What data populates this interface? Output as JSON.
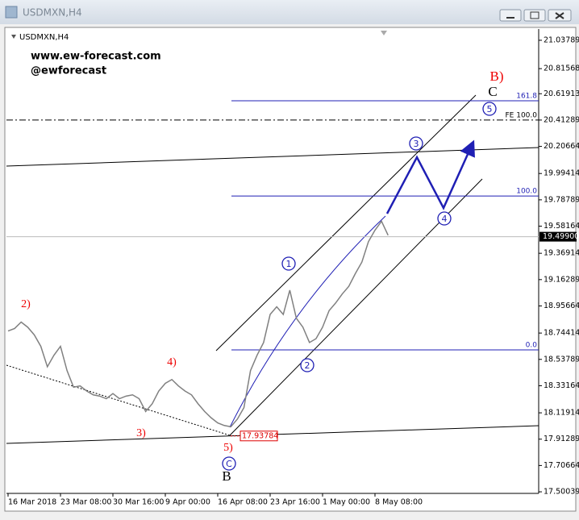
{
  "window": {
    "title": "USDMXN,H4"
  },
  "chart_data": {
    "type": "line",
    "title": "USDMXN,H4",
    "watermark": [
      "www.ew-forecast.com",
      "@ewforecast"
    ],
    "categories": [
      "16 Mar 2018",
      null,
      null,
      null,
      null,
      null,
      null,
      null,
      "23 Mar 08:00",
      null,
      null,
      null,
      null,
      null,
      null,
      null,
      "30 Mar 16:00",
      null,
      null,
      null,
      null,
      null,
      null,
      null,
      "9 Apr 00:00",
      null,
      null,
      null,
      null,
      null,
      null,
      null,
      "16 Apr 08:00",
      null,
      null,
      null,
      null,
      null,
      null,
      null,
      "23 Apr 16:00",
      null,
      null,
      null,
      null,
      null,
      null,
      null,
      "1 May 00:00",
      null,
      null,
      null,
      null,
      null,
      null,
      null,
      "8 May 08:00",
      null,
      null
    ],
    "values": [
      18.76,
      18.78,
      18.83,
      18.79,
      18.73,
      18.64,
      18.48,
      18.57,
      18.64,
      18.45,
      18.32,
      18.33,
      18.29,
      18.26,
      18.25,
      18.23,
      18.27,
      18.23,
      18.25,
      18.26,
      18.23,
      18.13,
      18.19,
      18.29,
      18.35,
      18.38,
      18.33,
      18.29,
      18.26,
      18.19,
      18.13,
      18.08,
      18.04,
      18.02,
      18.01,
      18.07,
      18.16,
      18.45,
      18.57,
      18.67,
      18.89,
      18.95,
      18.89,
      19.08,
      18.86,
      18.79,
      18.67,
      18.7,
      18.79,
      18.92,
      18.98,
      19.05,
      19.11,
      19.21,
      19.3,
      19.46,
      19.55,
      19.62,
      19.51
    ],
    "color": "#808080",
    "ylim": [
      17.488,
      21.126
    ],
    "yticks": [
      21.03789,
      20.81568,
      20.61913,
      20.41289,
      20.20664,
      19.99414,
      19.78789,
      19.58164,
      19.36914,
      19.16289,
      18.95664,
      18.74414,
      18.53789,
      18.33164,
      18.11914,
      17.91289,
      17.70664,
      17.50039
    ],
    "last_price": {
      "value": 19.499,
      "label": "19.49900"
    },
    "low_price": 17.93784,
    "fib_levels": [
      {
        "label": "161.8",
        "price": 20.564
      },
      {
        "label": "FE 100.0",
        "price": 20.413
      },
      {
        "label": "100.0",
        "price": 19.818
      },
      {
        "label": "0.0",
        "price": 18.612
      }
    ],
    "wave_labels": [
      "2)",
      "4)",
      "3)",
      "5)",
      "B)",
      "C",
      "B"
    ],
    "circled_labels": [
      "1",
      "2",
      "3",
      "4",
      "5",
      "C"
    ]
  }
}
